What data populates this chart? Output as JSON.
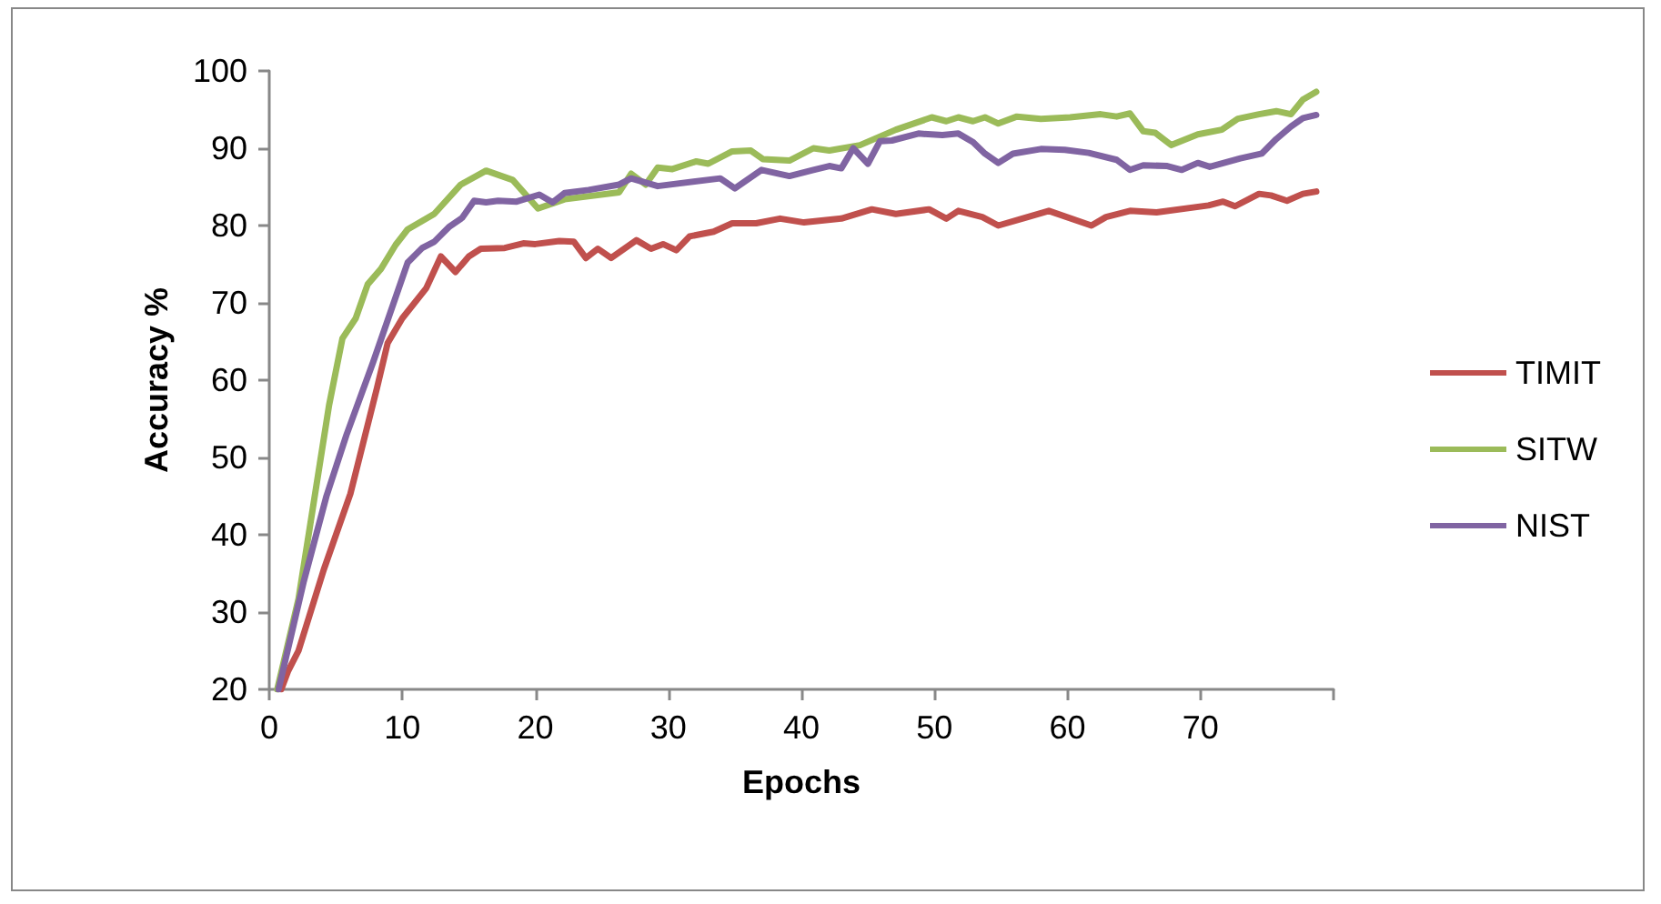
{
  "chart_data": {
    "type": "line",
    "xlabel": "Epochs",
    "ylabel": "Accuracy %",
    "xlim": [
      0,
      80
    ],
    "xticks": [
      0,
      10,
      20,
      30,
      40,
      50,
      60,
      70,
      {
        "value": 80,
        "label": null
      }
    ],
    "ylim": [
      20,
      100
    ],
    "yticks": [
      20,
      30,
      40,
      50,
      60,
      70,
      80,
      90,
      100
    ],
    "grid": false,
    "legend": "right",
    "marker": "none",
    "line_style": "solid",
    "series": [
      {
        "name": "TIMIT",
        "color": "#c0504d",
        "x": [
          0.9,
          1.4,
          2.2,
          4.1,
          6.1,
          8.1,
          8.9,
          10,
          11.8,
          12.9,
          14,
          15,
          15.9,
          17.7,
          19.1,
          20,
          21.8,
          22.9,
          23.8,
          24.7,
          25.7,
          27.6,
          28.7,
          29.6,
          30.6,
          31.6,
          33.4,
          34.8,
          36.6,
          38.4,
          40.2,
          43,
          45.3,
          47.1,
          49.6,
          50.9,
          51.8,
          53.6,
          54.8,
          56.6,
          58.6,
          61.8,
          62.9,
          64.7,
          66.7,
          70.6,
          71.7,
          72.6,
          74.4,
          75.3,
          76.5,
          77.7,
          78.7
        ],
        "values": [
          20,
          22.3,
          25,
          35.5,
          45.3,
          59,
          64.8,
          68,
          71.9,
          76,
          74,
          76,
          77,
          77.1,
          77.7,
          77.6,
          78,
          77.9,
          75.8,
          77,
          75.8,
          78.1,
          77,
          77.6,
          76.8,
          78.6,
          79.2,
          80.3,
          80.3,
          80.9,
          80.4,
          80.9,
          82.1,
          81.5,
          82.1,
          80.9,
          81.9,
          81.1,
          80,
          80.9,
          81.9,
          80,
          81.1,
          81.9,
          81.7,
          82.6,
          83.1,
          82.5,
          84.1,
          83.9,
          83.2,
          84.1,
          84.4
        ]
      },
      {
        "name": "SITW",
        "color": "#9bbb59",
        "x": [
          0.6,
          2.2,
          4.5,
          5.5,
          6.5,
          7.4,
          8.4,
          9.5,
          10.4,
          12.4,
          14.4,
          16.3,
          18.3,
          20.2,
          22.2,
          26.3,
          27.2,
          28.3,
          29.2,
          30.3,
          32.1,
          33,
          34.8,
          36.2,
          37.1,
          39.1,
          40.9,
          42.1,
          44.4,
          47.1,
          49.8,
          50.9,
          51.8,
          52.9,
          53.8,
          54.8,
          56.2,
          58,
          60.2,
          62.5,
          63.7,
          64.7,
          65.7,
          66.6,
          67.8,
          69.8,
          71.6,
          72.8,
          74.4,
          75.7,
          76.8,
          77.7,
          78.7
        ],
        "values": [
          20,
          31.7,
          56.8,
          65.4,
          68,
          72.4,
          74.4,
          77.5,
          79.5,
          81.5,
          85.3,
          87.1,
          85.9,
          82.2,
          83.4,
          84.3,
          86.7,
          85.3,
          87.5,
          87.3,
          88.3,
          88,
          89.6,
          89.7,
          88.6,
          88.4,
          90,
          89.7,
          90.4,
          92.4,
          94,
          93.5,
          94,
          93.5,
          94,
          93.2,
          94.1,
          93.8,
          94,
          94.4,
          94.1,
          94.5,
          92.2,
          92,
          90.4,
          91.8,
          92.4,
          93.8,
          94.4,
          94.8,
          94.4,
          96.3,
          97.3
        ]
      },
      {
        "name": "NIST",
        "color": "#8064a2",
        "x": [
          0.7,
          2.6,
          4.3,
          5.8,
          7.8,
          10.4,
          11.5,
          12.4,
          13.5,
          14.5,
          15.4,
          16.3,
          17.2,
          18.6,
          20.3,
          21.3,
          22.2,
          24,
          26.3,
          27.2,
          29.2,
          33.9,
          35,
          37,
          39.1,
          40.9,
          42.1,
          43,
          43.9,
          45,
          45.9,
          46.8,
          48.8,
          50.6,
          51.8,
          52.9,
          53.8,
          54.8,
          55.9,
          58,
          59.8,
          61.6,
          63.7,
          64.7,
          65.7,
          67.5,
          68.6,
          69.8,
          70.7,
          73,
          74.6,
          75.7,
          76.8,
          77.7,
          78.7
        ],
        "values": [
          20,
          34,
          45,
          52.9,
          62.3,
          75.2,
          77.1,
          77.9,
          79.8,
          81,
          83.2,
          83,
          83.2,
          83.1,
          84,
          83,
          84.2,
          84.6,
          85.3,
          86.1,
          85.1,
          86.1,
          84.8,
          87.2,
          86.4,
          87.2,
          87.7,
          87.4,
          90,
          88,
          90.9,
          91,
          91.9,
          91.7,
          91.9,
          90.8,
          89.3,
          88.1,
          89.3,
          89.9,
          89.8,
          89.4,
          88.5,
          87.2,
          87.8,
          87.7,
          87.2,
          88.1,
          87.6,
          88.7,
          89.3,
          91.2,
          92.8,
          93.9,
          94.3
        ]
      }
    ]
  }
}
